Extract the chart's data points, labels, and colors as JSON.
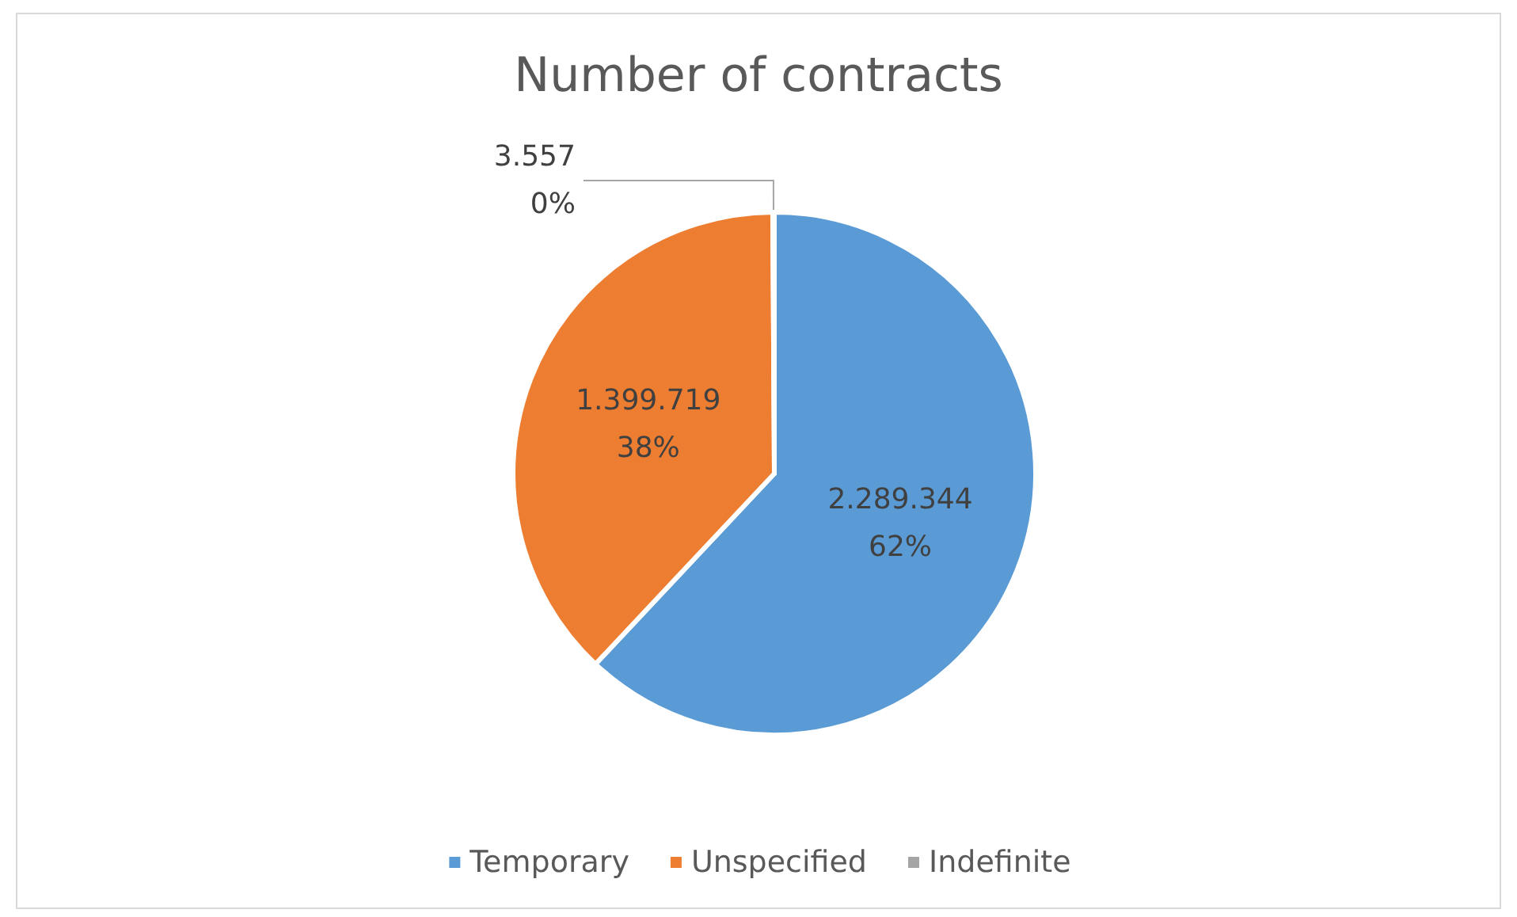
{
  "chart_data": {
    "type": "pie",
    "title": "Number of contracts",
    "categories": [
      "Temporary",
      "Unspecified",
      "Indefinite"
    ],
    "values": [
      2289344,
      1399719,
      3557
    ],
    "colors": [
      "#5b9bd5",
      "#ed7d31",
      "#a5a5a5"
    ],
    "value_labels": [
      "2.289.344\n62%",
      "1.399.719\n38%",
      "3.557\n0%"
    ],
    "legend": "bottom"
  }
}
